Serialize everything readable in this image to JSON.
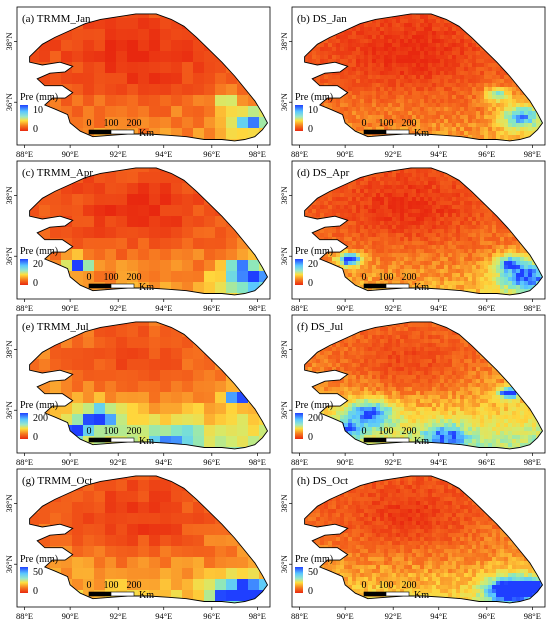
{
  "panels": [
    {
      "title": "(a) TRMM_Jan",
      "style": "grid",
      "month": "jan",
      "legend_max": "10"
    },
    {
      "title": "(b) DS_Jan",
      "style": "smooth",
      "month": "jan",
      "legend_max": "10"
    },
    {
      "title": "(c) TRMM_Apr",
      "style": "grid",
      "month": "apr",
      "legend_max": "20"
    },
    {
      "title": "(d) DS_Apr",
      "style": "smooth",
      "month": "apr",
      "legend_max": "20"
    },
    {
      "title": "(e) TRMM_Jul",
      "style": "grid",
      "month": "jul",
      "legend_max": "200"
    },
    {
      "title": "(f) DS_Jul",
      "style": "smooth",
      "month": "jul",
      "legend_max": "200"
    },
    {
      "title": "(g) TRMM_Oct",
      "style": "grid",
      "month": "oct",
      "legend_max": "50"
    },
    {
      "title": "(h) DS_Oct",
      "style": "smooth",
      "month": "oct",
      "legend_max": "50"
    }
  ],
  "legend": {
    "label": "Pre (mm)",
    "min": "0"
  },
  "scalebar": {
    "labels": [
      "0",
      "100",
      "200"
    ],
    "unit": "Km"
  },
  "x_ticks": [
    "88°E",
    "90°E",
    "92°E",
    "94°E",
    "96°E",
    "98°E"
  ],
  "y_ticks": [
    "38°N",
    "36°N"
  ],
  "colors": {
    "low": "#e8280f",
    "mid": "#ffd23c",
    "high": "#1f3fff",
    "outline": "#000000"
  }
}
